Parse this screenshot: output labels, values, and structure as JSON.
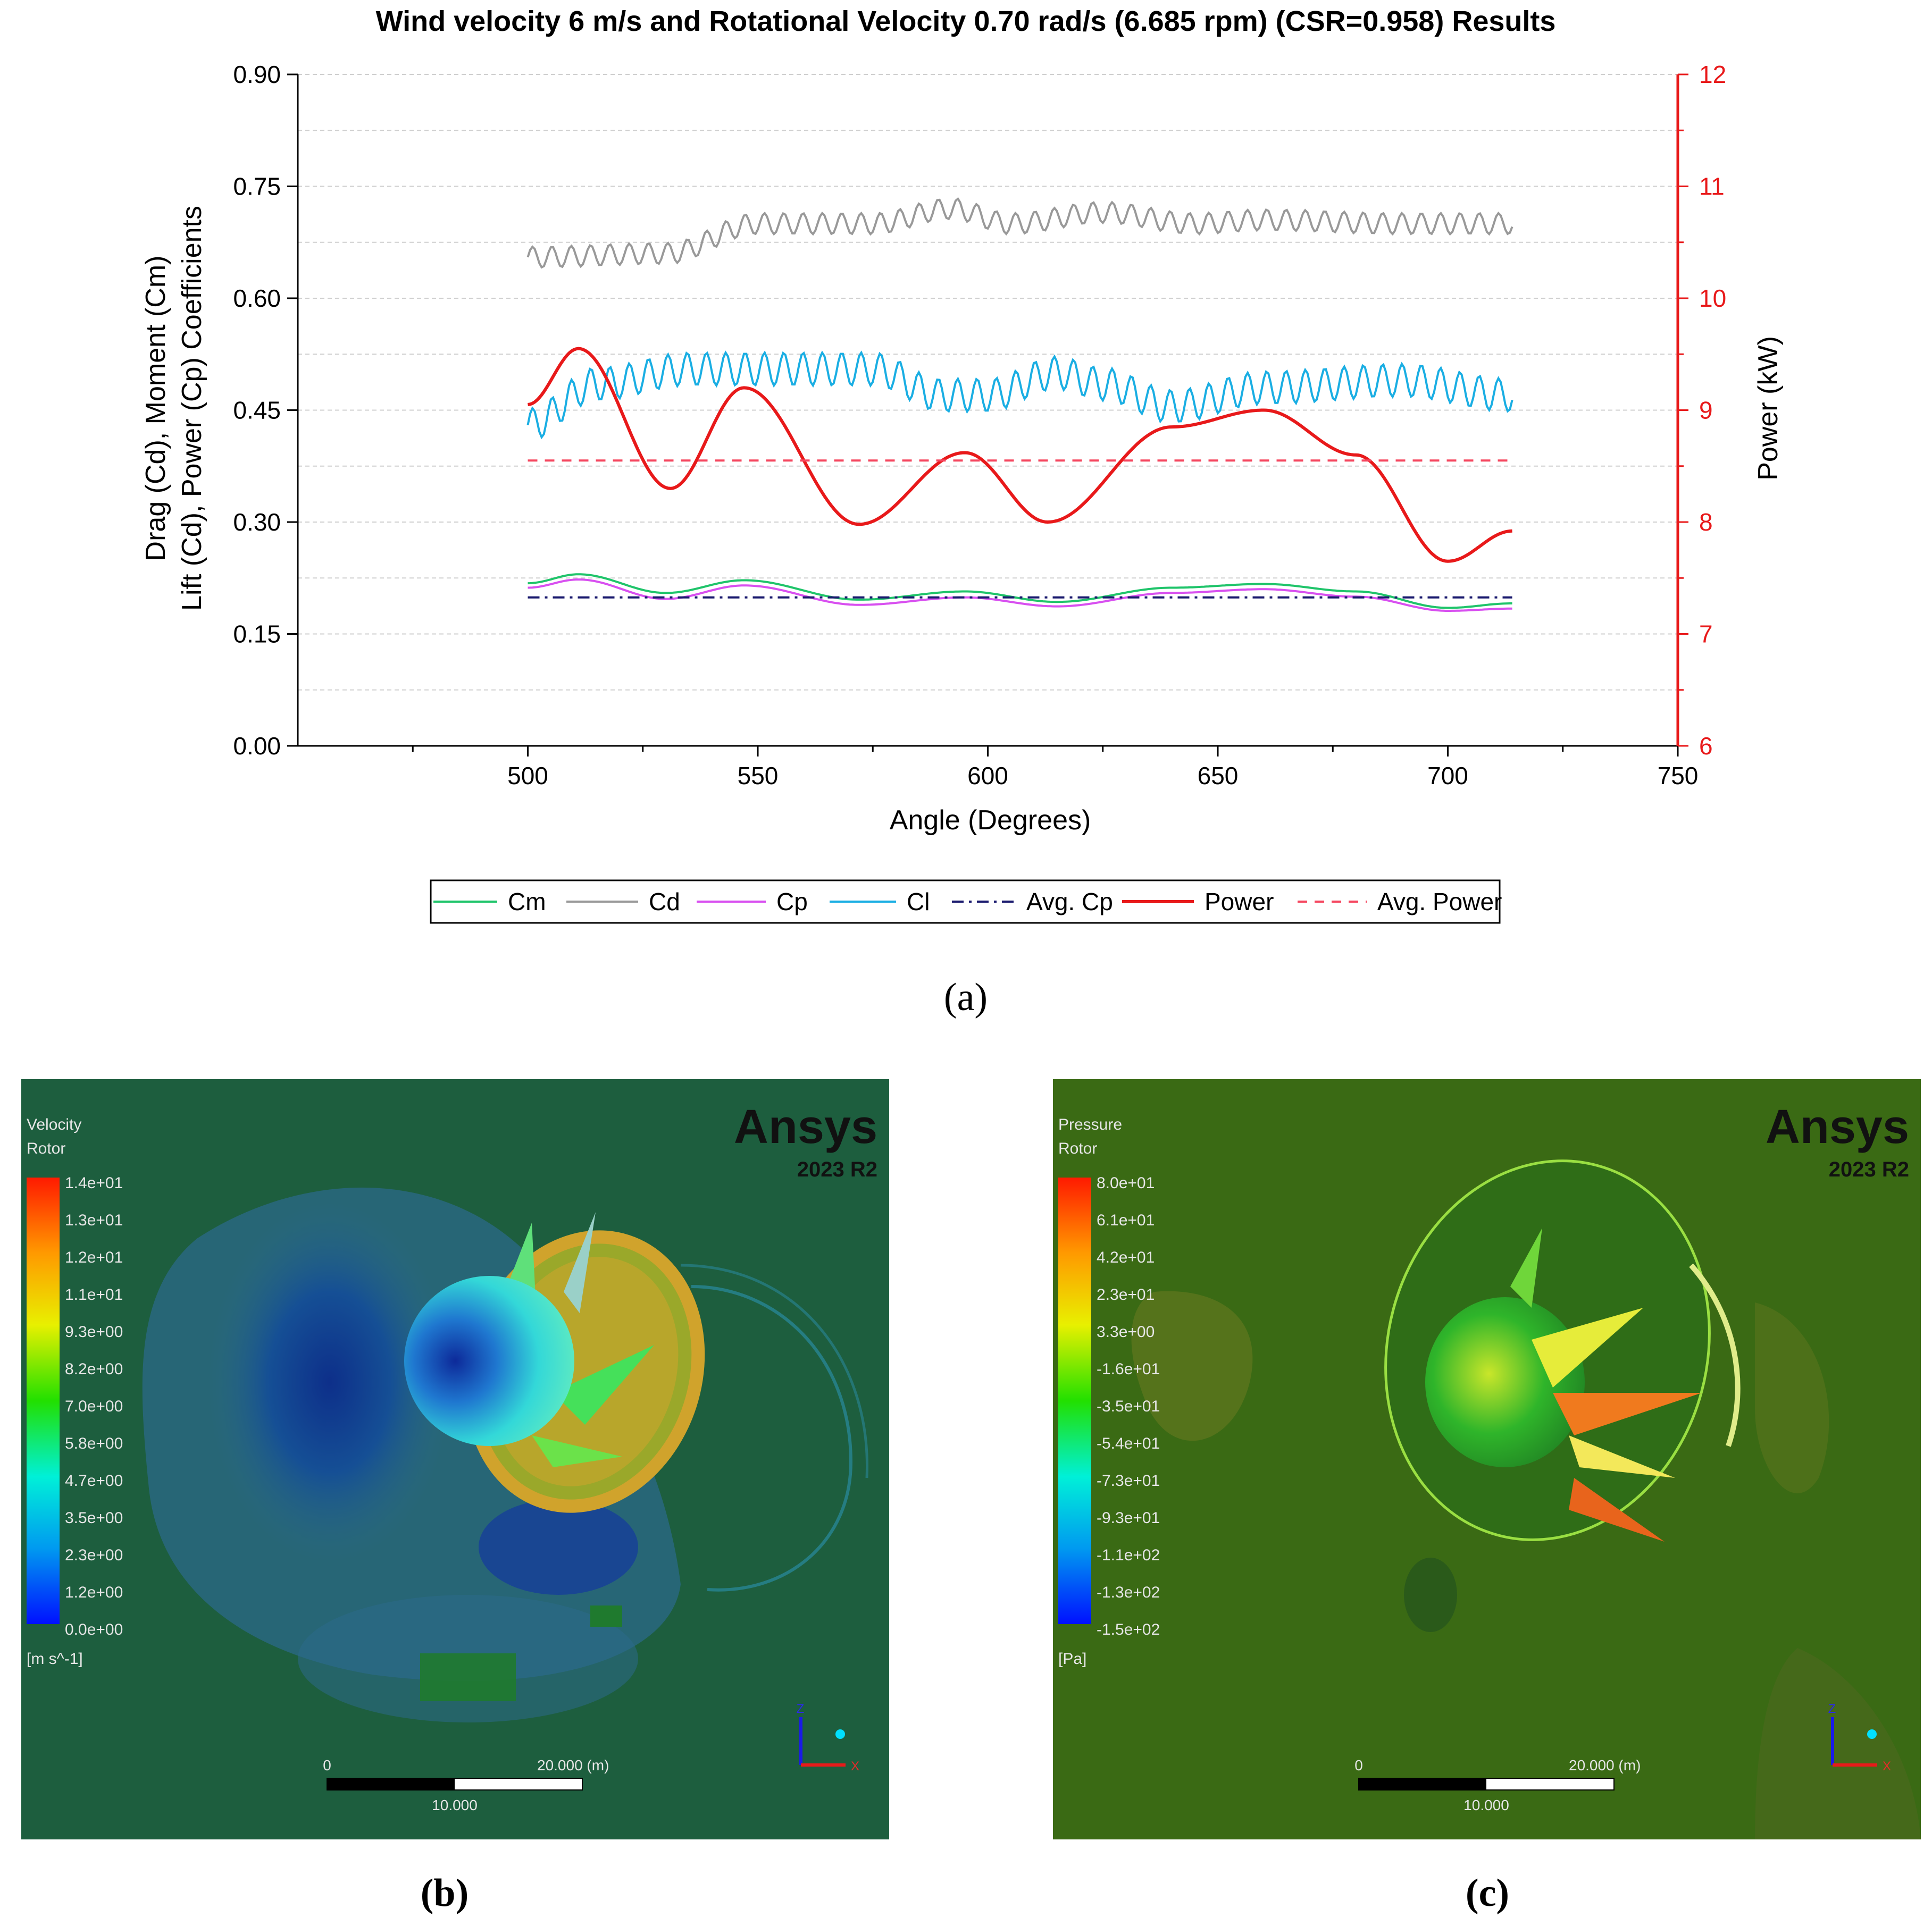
{
  "chart_data": {
    "type": "line",
    "title": "Wind velocity 6 m/s and  Rotational Velocity 0.70 rad/s (6.685 rpm) (CSR=0.958) Results",
    "xlabel": "Angle (Degrees)",
    "ylabel_left_line1": "Drag (Cd), Moment (Cm)",
    "ylabel_left_line2": "Lift (Cd), Power (Cp) Coefficients",
    "ylabel_right": "Power (kW)",
    "xlim": [
      450,
      750
    ],
    "ylim_left": [
      0,
      0.9
    ],
    "ylim_right": [
      6,
      12
    ],
    "x_ticks": [
      500,
      550,
      600,
      650,
      700,
      750
    ],
    "x_tick_labels": [
      "500",
      "550",
      "600",
      "650",
      "700",
      "750"
    ],
    "y_left_ticks": [
      0,
      0.15,
      0.3,
      0.45,
      0.6,
      0.75,
      0.9
    ],
    "y_left_tick_labels": [
      "0.00",
      "0.15",
      "0.30",
      "0.45",
      "0.60",
      "0.75",
      "0.90"
    ],
    "y_right_ticks": [
      6,
      7,
      8,
      9,
      10,
      11,
      12
    ],
    "y_right_tick_labels": [
      "6",
      "7",
      "8",
      "9",
      "10",
      "11",
      "12"
    ],
    "grid": true,
    "legend_position": "bottom",
    "series": [
      {
        "name": "Cm",
        "axis": "left",
        "color": "#1fc46a",
        "style": "solid",
        "x": [
          500,
          511,
          530,
          547,
          572,
          595,
          615,
          640,
          660,
          680,
          700,
          714
        ],
        "y": [
          0.218,
          0.23,
          0.205,
          0.222,
          0.196,
          0.207,
          0.193,
          0.212,
          0.217,
          0.207,
          0.185,
          0.191
        ]
      },
      {
        "name": "Cd",
        "axis": "left",
        "color": "#999999",
        "style": "solid",
        "oscillation": true,
        "x": [
          500,
          530,
          550,
          575,
          592,
          605,
          625,
          645,
          660,
          690,
          714
        ],
        "y": [
          0.655,
          0.66,
          0.7,
          0.7,
          0.72,
          0.7,
          0.715,
          0.7,
          0.705,
          0.7,
          0.7
        ]
      },
      {
        "name": "Cp",
        "axis": "left",
        "color": "#d84ff0",
        "style": "solid",
        "x": [
          500,
          511,
          530,
          547,
          572,
          595,
          615,
          640,
          660,
          680,
          700,
          714
        ],
        "y": [
          0.212,
          0.223,
          0.197,
          0.215,
          0.189,
          0.199,
          0.187,
          0.205,
          0.21,
          0.2,
          0.181,
          0.184
        ]
      },
      {
        "name": "Cl",
        "axis": "left",
        "color": "#1aaee3",
        "style": "solid",
        "oscillation": true,
        "x": [
          500,
          515,
          535,
          560,
          575,
          590,
          600,
          615,
          625,
          640,
          660,
          690,
          714
        ],
        "y": [
          0.43,
          0.485,
          0.505,
          0.505,
          0.505,
          0.47,
          0.47,
          0.5,
          0.485,
          0.455,
          0.48,
          0.49,
          0.47
        ]
      },
      {
        "name": "Avg. Cp",
        "axis": "left",
        "color": "#1a1a6e",
        "style": "dashdot",
        "x": [
          500,
          714
        ],
        "y": [
          0.199,
          0.199
        ]
      },
      {
        "name": "Power",
        "axis": "right",
        "color": "#e8191a",
        "style": "solid",
        "x": [
          500,
          511,
          531,
          547,
          572,
          595,
          613,
          640,
          660,
          680,
          700,
          714
        ],
        "y": [
          9.05,
          9.55,
          8.3,
          9.2,
          7.98,
          8.62,
          8.0,
          8.85,
          9.0,
          8.6,
          7.65,
          7.92
        ]
      },
      {
        "name": "Avg. Power",
        "axis": "right",
        "color": "#f5465f",
        "style": "dashed",
        "x": [
          500,
          714
        ],
        "y": [
          8.55,
          8.55
        ]
      }
    ]
  },
  "panel_labels": {
    "a": "(a)",
    "b": "(b)",
    "c": "(c)"
  },
  "panel_b": {
    "legend_title_1": "Velocity",
    "legend_title_2": "Rotor",
    "legend_values": [
      "1.4e+01",
      "1.3e+01",
      "1.2e+01",
      "1.1e+01",
      "9.3e+00",
      "8.2e+00",
      "7.0e+00",
      "5.8e+00",
      "4.7e+00",
      "3.5e+00",
      "2.3e+00",
      "1.2e+00",
      "0.0e+00"
    ],
    "unit": "[m s^-1]",
    "brand": "Ansys",
    "version": "2023 R2",
    "scale_left": "0",
    "scale_mid": "10.000",
    "scale_right": "20.000  (m)",
    "axis_z": "Z",
    "axis_x": "X"
  },
  "panel_c": {
    "legend_title_1": "Pressure",
    "legend_title_2": "Rotor",
    "legend_values": [
      "8.0e+01",
      "6.1e+01",
      "4.2e+01",
      "2.3e+01",
      "3.3e+00",
      "-1.6e+01",
      "-3.5e+01",
      "-5.4e+01",
      "-7.3e+01",
      "-9.3e+01",
      "-1.1e+02",
      "-1.3e+02",
      "-1.5e+02"
    ],
    "unit": "[Pa]",
    "brand": "Ansys",
    "version": "2023 R2",
    "scale_left": "0",
    "scale_mid": "10.000",
    "scale_right": "20.000  (m)",
    "axis_z": "Z",
    "axis_x": "X"
  }
}
